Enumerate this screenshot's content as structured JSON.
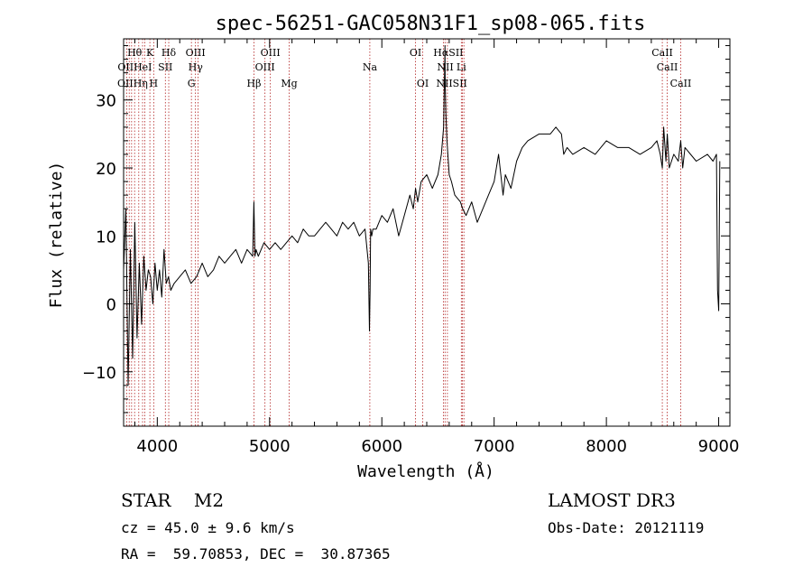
{
  "chart_data": {
    "type": "line",
    "title": "spec-56251-GAC058N31F1_sp08-065.fits",
    "xlabel": "Wavelength (Å)",
    "ylabel": "Flux (relative)",
    "xlim": [
      3700,
      9100
    ],
    "ylim": [
      -18,
      39
    ],
    "xticks": [
      4000,
      5000,
      6000,
      7000,
      8000,
      9000
    ],
    "yticks": [
      -10,
      0,
      10,
      20,
      30
    ],
    "grid": false,
    "series": [
      {
        "name": "spectrum",
        "x": [
          3700,
          3720,
          3740,
          3760,
          3780,
          3800,
          3820,
          3840,
          3860,
          3880,
          3900,
          3920,
          3940,
          3960,
          3980,
          4000,
          4020,
          4040,
          4060,
          4080,
          4100,
          4120,
          4150,
          4200,
          4250,
          4300,
          4350,
          4400,
          4450,
          4500,
          4550,
          4600,
          4650,
          4700,
          4750,
          4800,
          4850,
          4860,
          4870,
          4880,
          4900,
          4950,
          5000,
          5050,
          5100,
          5150,
          5200,
          5250,
          5300,
          5350,
          5400,
          5450,
          5500,
          5550,
          5600,
          5650,
          5700,
          5750,
          5800,
          5850,
          5880,
          5890,
          5895,
          5900,
          5910,
          5920,
          5950,
          6000,
          6050,
          6100,
          6150,
          6200,
          6250,
          6280,
          6300,
          6320,
          6350,
          6400,
          6450,
          6500,
          6530,
          6550,
          6555,
          6560,
          6562,
          6564,
          6570,
          6580,
          6600,
          6620,
          6650,
          6700,
          6720,
          6750,
          6800,
          6850,
          6900,
          6950,
          7000,
          7040,
          7060,
          7080,
          7100,
          7150,
          7200,
          7250,
          7300,
          7400,
          7500,
          7550,
          7600,
          7620,
          7650,
          7700,
          7800,
          7900,
          8000,
          8100,
          8200,
          8300,
          8400,
          8450,
          8480,
          8498,
          8510,
          8530,
          8542,
          8560,
          8600,
          8640,
          8662,
          8680,
          8700,
          8800,
          8900,
          8950,
          8980,
          8990,
          9000,
          9010
        ],
        "y": [
          5,
          14,
          -12,
          8,
          -8,
          12,
          -5,
          6,
          -3,
          7,
          2,
          5,
          4,
          0,
          6,
          2,
          5,
          1,
          8,
          3,
          4,
          2,
          3,
          4,
          5,
          3,
          4,
          6,
          4,
          5,
          7,
          6,
          7,
          8,
          6,
          8,
          7,
          15,
          7,
          8,
          7,
          9,
          8,
          9,
          8,
          9,
          10,
          9,
          11,
          10,
          10,
          11,
          12,
          11,
          10,
          12,
          11,
          12,
          10,
          11,
          6,
          -4,
          2,
          11,
          10,
          11,
          11,
          13,
          12,
          14,
          10,
          13,
          16,
          14,
          17,
          15,
          18,
          19,
          17,
          19,
          22,
          26,
          31,
          35,
          38,
          33,
          28,
          24,
          19,
          18,
          16,
          15,
          14,
          13,
          15,
          12,
          14,
          16,
          18,
          22,
          19,
          16,
          19,
          17,
          21,
          23,
          24,
          25,
          25,
          26,
          25,
          22,
          23,
          22,
          23,
          22,
          24,
          23,
          23,
          22,
          23,
          24,
          22,
          20,
          26,
          21,
          25,
          20,
          22,
          21,
          24,
          20,
          23,
          21,
          22,
          21,
          22,
          2,
          -1,
          21
        ],
        "color": "#000000"
      }
    ],
    "annotations": [
      {
        "label": "Hθ",
        "x": 3798,
        "row": 0
      },
      {
        "label": "K",
        "x": 3934,
        "row": 0
      },
      {
        "label": "Hδ",
        "x": 4102,
        "row": 0
      },
      {
        "label": "OIII",
        "x": 4340,
        "row": 0
      },
      {
        "label": "OIII",
        "x": 5007,
        "row": 0
      },
      {
        "label": "OI",
        "x": 6300,
        "row": 0
      },
      {
        "label": "HαSII",
        "x": 6592,
        "row": 0
      },
      {
        "label": "CaII",
        "x": 8498,
        "row": 0
      },
      {
        "label": "OIIHeI",
        "x": 3800,
        "row": 1
      },
      {
        "label": "SII",
        "x": 4072,
        "row": 1
      },
      {
        "label": "Hγ",
        "x": 4341,
        "row": 1
      },
      {
        "label": "OIII",
        "x": 4959,
        "row": 1
      },
      {
        "label": "Na",
        "x": 5893,
        "row": 1
      },
      {
        "label": "NII",
        "x": 6565,
        "row": 1
      },
      {
        "label": "Li",
        "x": 6708,
        "row": 1
      },
      {
        "label": "CaII",
        "x": 8542,
        "row": 1
      },
      {
        "label": "OIIHη",
        "x": 3780,
        "row": 2
      },
      {
        "label": "H",
        "x": 3968,
        "row": 2
      },
      {
        "label": "G",
        "x": 4304,
        "row": 2
      },
      {
        "label": "Hβ",
        "x": 4861,
        "row": 2
      },
      {
        "label": "Mg",
        "x": 5175,
        "row": 2
      },
      {
        "label": "OI",
        "x": 6364,
        "row": 2
      },
      {
        "label": "NIISII",
        "x": 6622,
        "row": 2
      },
      {
        "label": "CaII",
        "x": 8662,
        "row": 2
      }
    ],
    "line_markers": [
      3727,
      3750,
      3771,
      3798,
      3835,
      3869,
      3889,
      3934,
      3968,
      4072,
      4102,
      4304,
      4340,
      4363,
      4861,
      4959,
      5007,
      5175,
      5893,
      6300,
      6364,
      6548,
      6563,
      6584,
      6708,
      6717,
      6731,
      8498,
      8542,
      8662
    ],
    "marker_color": "#b22222"
  },
  "footer": {
    "object": "STAR    M2",
    "cz": "cz = 45.0 ± 9.6 km/s",
    "coords": "RA =  59.70853, DEC =  30.87365",
    "survey": "LAMOST DR3",
    "obs_date": "Obs-Date: 20121119"
  }
}
